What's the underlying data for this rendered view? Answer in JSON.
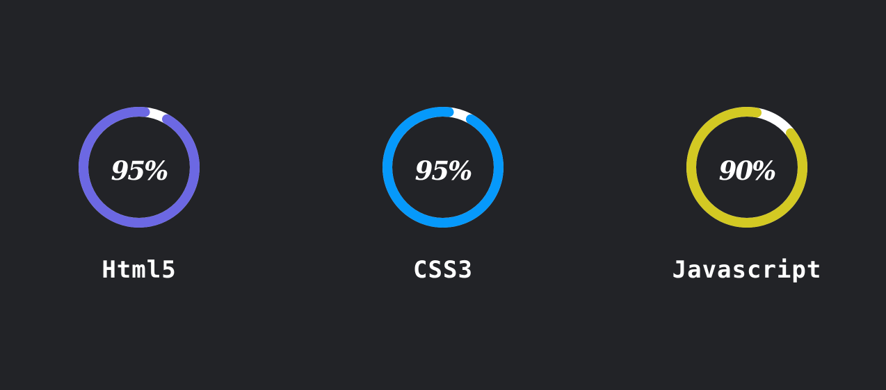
{
  "skills": [
    {
      "name": "Html5",
      "percent_label": "95%",
      "percent": 95,
      "color": "#6c68e3"
    },
    {
      "name": "CSS3",
      "percent_label": "95%",
      "percent": 95,
      "color": "#0699fb"
    },
    {
      "name": "Javascript",
      "percent_label": "90%",
      "percent": 90,
      "color": "#d3c923"
    }
  ],
  "colors": {
    "background": "#222327",
    "track": "#ffffff",
    "text": "#ffffff"
  }
}
